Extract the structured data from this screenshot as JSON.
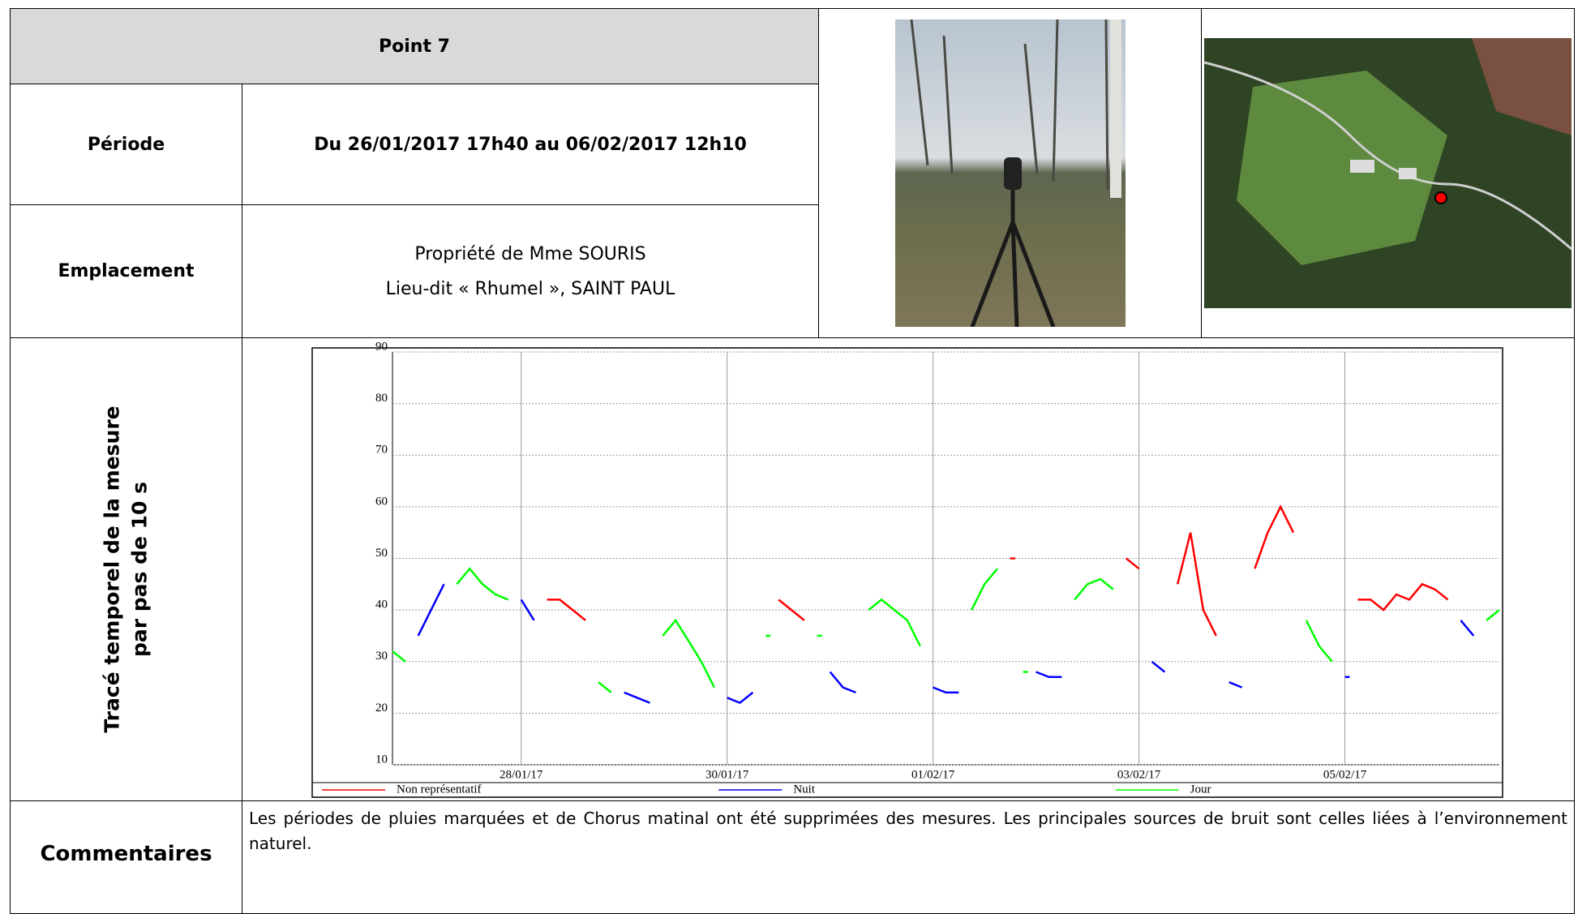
{
  "header": {
    "title": "Point 7"
  },
  "rows": [
    {
      "label": "Période",
      "value": "Du 26/01/2017 17h40 au 06/02/2017 12h10"
    },
    {
      "label": "Emplacement",
      "lines": [
        "Propriété de Mme SOURIS",
        "Lieu-dit « Rhumel », SAINT PAUL"
      ]
    },
    {
      "label_lines": [
        "Tracé temporel de la mesure",
        "par pas de 10 s"
      ]
    },
    {
      "label": "Commentaires",
      "value": "Les périodes de pluies marquées et de Chorus matinal ont été supprimées des mesures. Les principales sources de bruit sont celles liées à l’environnement naturel."
    }
  ],
  "chart_data": {
    "type": "line",
    "categories": [
      null,
      null,
      null,
      null,
      null,
      null,
      null,
      null,
      null,
      null,
      "28/01/17",
      null,
      null,
      null,
      null,
      null,
      null,
      null,
      null,
      null,
      null,
      null,
      null,
      null,
      null,
      null,
      "30/01/17",
      null,
      null,
      null,
      null,
      null,
      null,
      null,
      null,
      null,
      null,
      null,
      null,
      null,
      null,
      null,
      "01/02/17",
      null,
      null,
      null,
      null,
      null,
      null,
      null,
      null,
      null,
      null,
      null,
      null,
      null,
      null,
      null,
      "03/02/17",
      null,
      null,
      null,
      null,
      null,
      null,
      null,
      null,
      null,
      null,
      null,
      null,
      null,
      null,
      null,
      "05/02/17",
      null,
      null,
      null,
      null,
      null,
      null,
      null,
      null,
      null,
      null,
      null,
      null
    ],
    "series": [
      {
        "name": "Non représentatif",
        "color": "#ff0000",
        "values": [
          null,
          null,
          null,
          null,
          null,
          null,
          null,
          null,
          null,
          null,
          null,
          null,
          42,
          42,
          40,
          38,
          null,
          null,
          null,
          null,
          null,
          null,
          null,
          null,
          null,
          null,
          null,
          null,
          null,
          null,
          42,
          40,
          38,
          null,
          null,
          null,
          null,
          null,
          null,
          null,
          null,
          null,
          null,
          null,
          null,
          null,
          null,
          null,
          50,
          null,
          null,
          null,
          null,
          null,
          null,
          null,
          null,
          50,
          48,
          null,
          null,
          45,
          55,
          40,
          35,
          null,
          null,
          48,
          55,
          60,
          55,
          null,
          null,
          null,
          null,
          42,
          42,
          40,
          43,
          42,
          45,
          44,
          42,
          null,
          null,
          null,
          null
        ]
      },
      {
        "name": "Nuit",
        "color": "#0000ff",
        "values": [
          null,
          null,
          35,
          40,
          45,
          null,
          null,
          null,
          null,
          null,
          42,
          38,
          null,
          null,
          null,
          null,
          null,
          null,
          24,
          23,
          22,
          null,
          null,
          null,
          null,
          null,
          23,
          22,
          24,
          null,
          null,
          null,
          null,
          null,
          28,
          25,
          24,
          null,
          null,
          null,
          null,
          null,
          25,
          24,
          24,
          null,
          null,
          null,
          null,
          null,
          28,
          27,
          27,
          null,
          null,
          null,
          null,
          null,
          null,
          30,
          28,
          null,
          null,
          null,
          null,
          26,
          25,
          null,
          null,
          null,
          null,
          null,
          null,
          null,
          27,
          null,
          null,
          null,
          null,
          null,
          null,
          null,
          null,
          38,
          35,
          null,
          null
        ]
      },
      {
        "name": "Jour",
        "color": "#00ff00",
        "values": [
          32,
          30,
          null,
          null,
          null,
          45,
          48,
          45,
          43,
          42,
          null,
          null,
          null,
          null,
          null,
          null,
          26,
          24,
          null,
          null,
          null,
          35,
          38,
          34,
          30,
          25,
          null,
          null,
          null,
          35,
          null,
          null,
          null,
          35,
          null,
          null,
          null,
          40,
          42,
          40,
          38,
          33,
          null,
          null,
          null,
          40,
          45,
          48,
          null,
          28,
          null,
          null,
          null,
          42,
          45,
          46,
          44,
          null,
          null,
          null,
          null,
          null,
          null,
          null,
          null,
          null,
          null,
          null,
          null,
          null,
          null,
          38,
          33,
          30,
          null,
          null,
          null,
          null,
          null,
          null,
          null,
          null,
          null,
          null,
          null,
          38,
          40
        ]
      }
    ],
    "ylim": [
      10,
      90
    ],
    "yticks": [
      10,
      20,
      30,
      40,
      50,
      60,
      70,
      80,
      90
    ],
    "grid": true,
    "legend": "bottom"
  }
}
